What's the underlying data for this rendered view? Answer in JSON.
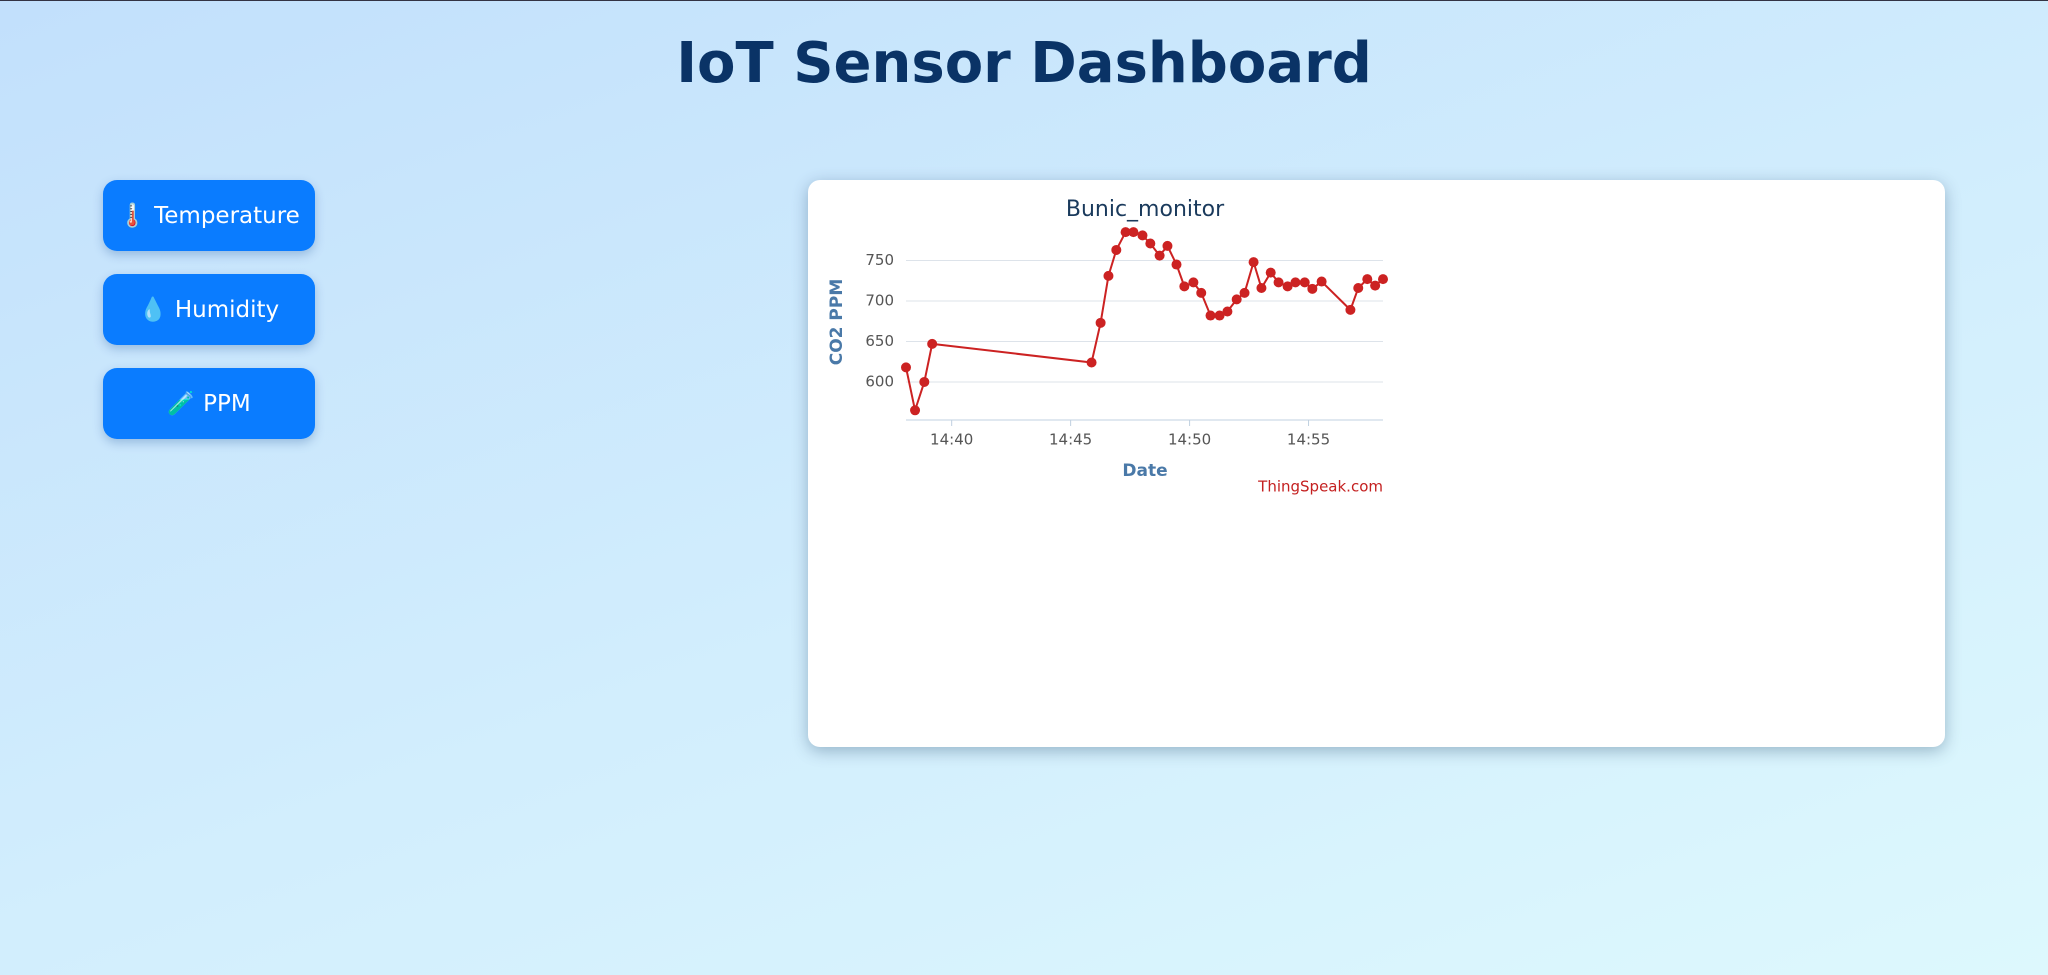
{
  "header": {
    "title": "IoT Sensor Dashboard"
  },
  "buttons": [
    "🌡️ Temperature",
    "💧 Humidity",
    "🧪 PPM"
  ],
  "chart_data": {
    "type": "line",
    "title": "Bunic_monitor",
    "x_label": "Date",
    "y_label": "CO2 PPM",
    "credit": "ThingSpeak.com",
    "x": [
      878.08,
      878.46,
      878.85,
      879.18,
      885.88,
      886.26,
      886.59,
      886.92,
      887.31,
      887.64,
      888.02,
      888.35,
      888.74,
      889.07,
      889.45,
      889.78,
      890.16,
      890.49,
      890.88,
      891.26,
      891.59,
      891.98,
      892.31,
      892.69,
      893.02,
      893.41,
      893.74,
      894.12,
      894.45,
      894.84,
      895.16,
      895.55,
      896.76,
      897.09,
      897.47,
      897.8,
      898.13
    ],
    "values": [
      618,
      565,
      600,
      647,
      624,
      673,
      731,
      763,
      785,
      785,
      781,
      771,
      756,
      768,
      745,
      718,
      723,
      710,
      682,
      682,
      687,
      702,
      710,
      748,
      716,
      735,
      723,
      718,
      723,
      723,
      715,
      724,
      689,
      716,
      727,
      719,
      727
    ],
    "color": "#cc2222",
    "xlim": [
      878.08,
      898.13
    ],
    "xticks": [
      {
        "value": 880,
        "label": "14:40"
      },
      {
        "value": 885,
        "label": "14:45"
      },
      {
        "value": 890,
        "label": "14:50"
      },
      {
        "value": 895,
        "label": "14:55"
      }
    ],
    "ylim": [
      553,
      800
    ],
    "yticks": [
      600,
      650,
      700,
      750
    ],
    "grid": true
  }
}
